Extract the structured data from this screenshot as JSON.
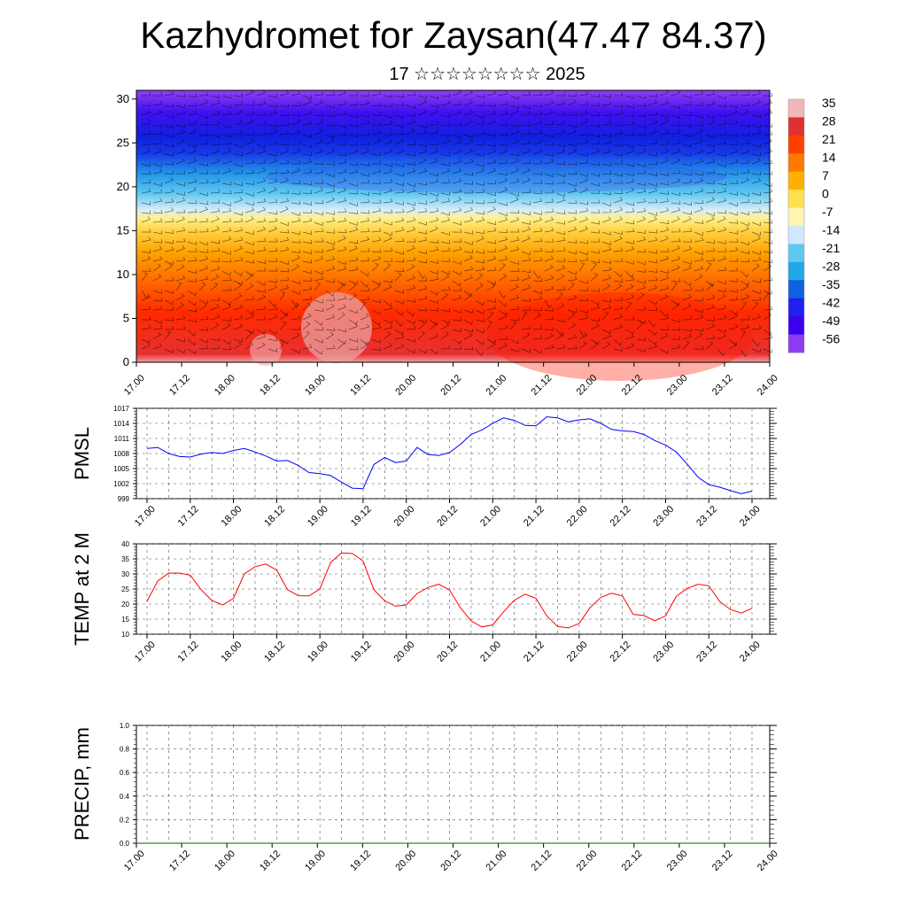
{
  "header": {
    "title": "Kazhydromet for Zaysan(47.47 84.37)",
    "subtitle": "17 ☆☆☆☆☆☆☆☆ 2025"
  },
  "chart_data": [
    {
      "type": "heatmap",
      "title": "",
      "ylabel": "",
      "ylim": [
        0,
        30
      ],
      "yticks": [
        "0",
        "5",
        "10",
        "15",
        "20",
        "25",
        "30"
      ],
      "xticks": [
        "17.00",
        "17.12",
        "18.00",
        "18.12",
        "19.00",
        "19.12",
        "20.00",
        "20.12",
        "21.00",
        "21.12",
        "22.00",
        "22.12",
        "23.00",
        "23.12",
        "24.00"
      ],
      "colorbar": {
        "labels": [
          "35",
          "28",
          "21",
          "14",
          "7",
          "0",
          "-7",
          "-14",
          "-21",
          "-28",
          "-35",
          "-42",
          "-49",
          "-56"
        ],
        "colors": [
          "#f2b8b8",
          "#e03030",
          "#ff4000",
          "#ff7a00",
          "#ffb000",
          "#ffe050",
          "#fff4b0",
          "#cfe8ff",
          "#5fc8f0",
          "#20a8e8",
          "#1060e0",
          "#2020f0",
          "#3c00f0",
          "#8c3cf0"
        ]
      },
      "overlay": "wind barbs"
    },
    {
      "type": "line",
      "ylabel": "PMSL",
      "ylim": [
        999,
        1017
      ],
      "yticks": [
        "999",
        "1002",
        "1005",
        "1008",
        "1011",
        "1014",
        "1017"
      ],
      "xticks": [
        "17.00",
        "17.12",
        "18.00",
        "18.12",
        "19.00",
        "19.12",
        "20.00",
        "20.12",
        "21.00",
        "21.12",
        "22.00",
        "22.12",
        "23.00",
        "23.12",
        "24.00"
      ],
      "series": [
        {
          "color": "#0000ff",
          "x": [
            0,
            3,
            6,
            9,
            12,
            15,
            18,
            21,
            24,
            27,
            30,
            33,
            36,
            39,
            42,
            45,
            48,
            51,
            54,
            57,
            60,
            63,
            66,
            69,
            72,
            75,
            78,
            81,
            84,
            87,
            90,
            93,
            96,
            99,
            102,
            105,
            108,
            111,
            114,
            117,
            120,
            123,
            126,
            129,
            132,
            135,
            138,
            141,
            144,
            147,
            150,
            153,
            156,
            159,
            162,
            165,
            168
          ],
          "values": [
            1009,
            1009.2,
            1008,
            1007.4,
            1007.3,
            1007.9,
            1008.2,
            1008,
            1008.6,
            1009,
            1008.3,
            1007.5,
            1006.5,
            1006.6,
            1005.6,
            1004.2,
            1004,
            1003.6,
            1002.3,
            1001.1,
            1001,
            1005.8,
            1007.2,
            1006.2,
            1006.5,
            1009.2,
            1007.8,
            1007.6,
            1008.2,
            1009.8,
            1011.8,
            1012.7,
            1014,
            1015.1,
            1014.6,
            1013.6,
            1013.5,
            1015.3,
            1015.1,
            1014.3,
            1014.7,
            1014.9,
            1014,
            1012.8,
            1012.5,
            1012.4,
            1011.8,
            1010.6,
            1009.7,
            1008.3,
            1005.9,
            1003.3,
            1001.8,
            1001.3,
            1000.6,
            1000,
            1000.5
          ]
        }
      ]
    },
    {
      "type": "line",
      "ylabel": "TEMP at 2 M",
      "ylim": [
        10,
        40
      ],
      "yticks": [
        "10",
        "15",
        "20",
        "25",
        "30",
        "35",
        "40"
      ],
      "xticks": [
        "17.00",
        "17.12",
        "18.00",
        "18.12",
        "19.00",
        "19.12",
        "20.00",
        "20.12",
        "21.00",
        "21.12",
        "22.00",
        "22.12",
        "23.00",
        "23.12",
        "24.00"
      ],
      "series": [
        {
          "color": "#ff0000",
          "x": [
            0,
            3,
            6,
            9,
            12,
            15,
            18,
            21,
            24,
            27,
            30,
            33,
            36,
            39,
            42,
            45,
            48,
            51,
            54,
            57,
            60,
            63,
            66,
            69,
            72,
            75,
            78,
            81,
            84,
            87,
            90,
            93,
            96,
            99,
            102,
            105,
            108,
            111,
            114,
            117,
            120,
            123,
            126,
            129,
            132,
            135,
            138,
            141,
            144,
            147,
            150,
            153,
            156,
            159,
            162,
            165,
            168
          ],
          "values": [
            21,
            27.7,
            30.3,
            30.3,
            29.6,
            24.8,
            21.2,
            19.7,
            21.9,
            30,
            32.4,
            33.3,
            31.3,
            24.8,
            22.8,
            22.7,
            25,
            33.8,
            37,
            36.8,
            34.3,
            24.8,
            21.1,
            19.3,
            19.7,
            23.5,
            25.5,
            26.6,
            24.7,
            18.8,
            14.4,
            12.4,
            13.1,
            17.4,
            21.3,
            23.3,
            21.9,
            16.1,
            12.6,
            12.1,
            13.6,
            18.8,
            22.2,
            23.6,
            22.7,
            16.6,
            16.2,
            14.4,
            16.1,
            22.6,
            25.2,
            26.6,
            26.1,
            20.9,
            18.2,
            17,
            18.6
          ]
        }
      ]
    },
    {
      "type": "line",
      "ylabel": "PRECIP, mm",
      "ylim": [
        0,
        1
      ],
      "yticks": [
        "0.0",
        "0.2",
        "0.4",
        "0.6",
        "0.8",
        "1.0"
      ],
      "xticks": [
        "17.00",
        "17.12",
        "18.00",
        "18.12",
        "19.00",
        "19.12",
        "20.00",
        "20.12",
        "21.00",
        "21.12",
        "22.00",
        "22.12",
        "23.00",
        "23.12",
        "24.00"
      ],
      "series": [
        {
          "color": "#006400",
          "x": [
            0,
            168
          ],
          "values": [
            0,
            0
          ]
        }
      ]
    }
  ]
}
